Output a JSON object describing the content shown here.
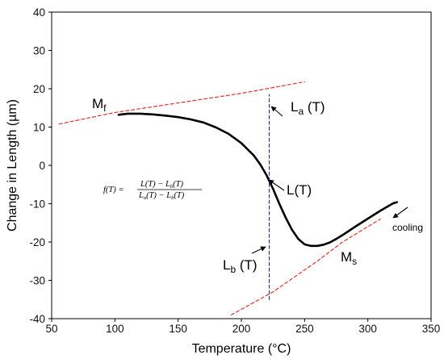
{
  "chart_data": {
    "type": "line",
    "title": "",
    "xlabel": "Temperature (°C)",
    "ylabel": "Change in Length (µm)",
    "xlim": [
      50,
      350
    ],
    "ylim": [
      -40,
      40
    ],
    "x_ticks": [
      "50",
      "100",
      "150",
      "200",
      "250",
      "300",
      "350"
    ],
    "y_ticks": [
      "40",
      "30",
      "20",
      "10",
      "0",
      "-10",
      "-20",
      "-30",
      "-40"
    ],
    "grid": false,
    "series": [
      {
        "style": "solid",
        "color": "#000000",
        "x": [
          103,
          110,
          120,
          130,
          140,
          150,
          160,
          170,
          180,
          190,
          200,
          210,
          215,
          220,
          225,
          230,
          235,
          240,
          245,
          250,
          255,
          260,
          265,
          270,
          275,
          280,
          290,
          300,
          310,
          320,
          323
        ],
        "y": [
          13.2,
          13.5,
          13.5,
          13.3,
          13.0,
          12.6,
          12.0,
          11.2,
          9.9,
          8.2,
          5.8,
          2.5,
          0.2,
          -2.6,
          -6.1,
          -10.0,
          -13.6,
          -16.8,
          -19.2,
          -20.6,
          -21.0,
          -21.0,
          -20.7,
          -20.1,
          -19.2,
          -18.2,
          -16.0,
          -13.9,
          -11.8,
          -9.9,
          -9.6
        ]
      },
      {
        "style": "dashed",
        "color": "#e8201a",
        "x": [
          56,
          100,
          150,
          200,
          250
        ],
        "y": [
          10.8,
          13.8,
          16.3,
          18.8,
          21.8
        ]
      },
      {
        "style": "dashed",
        "color": "#e8201a",
        "x": [
          192,
          225,
          260,
          280,
          310
        ],
        "y": [
          -39.0,
          -33.0,
          -25.0,
          -20.0,
          -14.0
        ]
      },
      {
        "style": "dashed",
        "color": "#1a2e9e",
        "x": [
          222,
          222
        ],
        "y": [
          -35.0,
          18.5
        ]
      }
    ],
    "annotations": {
      "mf_main": "M",
      "mf_sub": "f",
      "ms_main": "M",
      "ms_sub": "s",
      "la_main": "L",
      "la_sub": "a",
      "la_rest": " (T)",
      "lb_main": "L",
      "lb_sub": "b",
      "lb_rest": " (T)",
      "lt": "L(T)",
      "cooling": "cooling",
      "formula_lhs": "f(T) =",
      "formula_num": "L(T) − L",
      "formula_num_sub": "b",
      "formula_num_end": "(T)",
      "formula_den_a": "L",
      "formula_den_a_sub": "a",
      "formula_den_mid": "(T) − L",
      "formula_den_b_sub": "b",
      "formula_den_end": "(T)"
    }
  }
}
